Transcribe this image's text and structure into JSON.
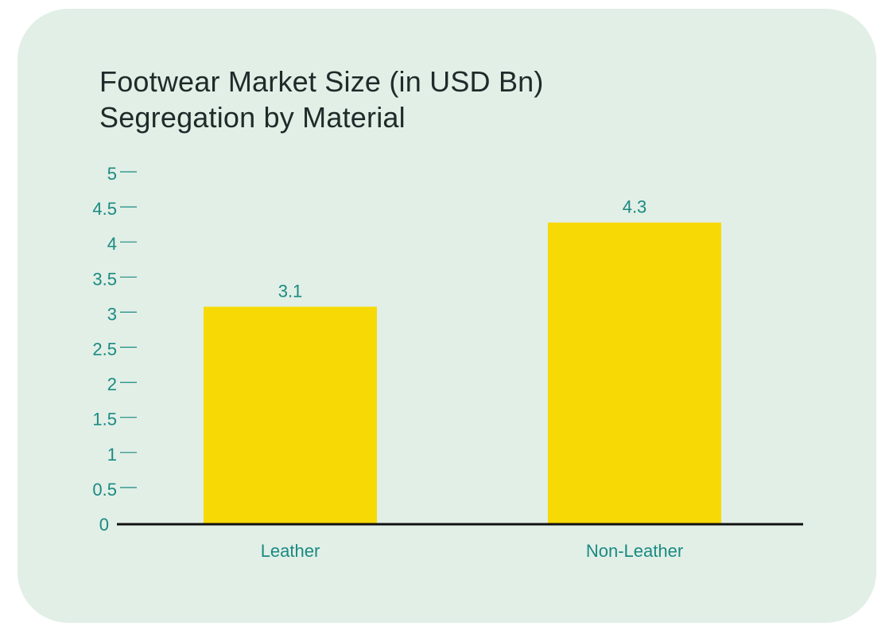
{
  "colors": {
    "background": "#e1efe6",
    "bar": "#f7d905",
    "axis_text": "#1b8a82",
    "title": "#1f2a2a",
    "baseline": "#111111"
  },
  "chart_data": {
    "type": "bar",
    "title": "Footwear Market Size (in USD Bn) Segregation by Material",
    "xlabel": "",
    "ylabel": "",
    "categories": [
      "Leather",
      "Non-Leather"
    ],
    "values": [
      3.1,
      4.3
    ],
    "data_labels": [
      "3.1",
      "4.3"
    ],
    "ylim": [
      0,
      5
    ],
    "y_ticks": [
      "0",
      "0.5",
      "1",
      "1.5",
      "2",
      "2.5",
      "3",
      "3.5",
      "4",
      "4.5",
      "5"
    ],
    "y_tick_values": [
      0,
      0.5,
      1,
      1.5,
      2,
      2.5,
      3,
      3.5,
      4,
      4.5,
      5
    ],
    "grid": false,
    "legend": "none"
  }
}
